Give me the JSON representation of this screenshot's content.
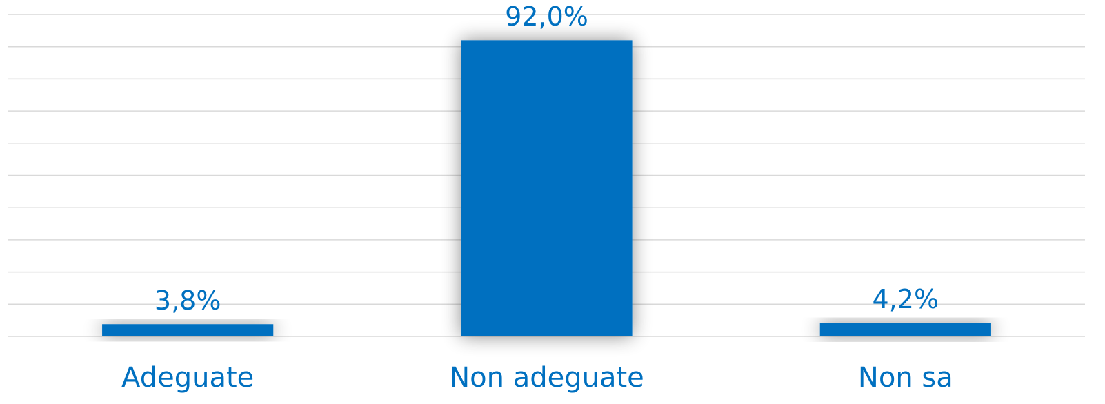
{
  "chart_data": {
    "type": "bar",
    "categories": [
      "Adeguate",
      "Non adeguate",
      "Non sa"
    ],
    "values": [
      3.8,
      92.0,
      4.2
    ],
    "value_labels": [
      "3,8%",
      "92,0%",
      "4,2%"
    ],
    "color": "#0070c0",
    "ylim": [
      0,
      100
    ],
    "yticks": [
      0,
      10,
      20,
      30,
      40,
      50,
      60,
      70,
      80,
      90,
      100
    ],
    "grid": true
  }
}
